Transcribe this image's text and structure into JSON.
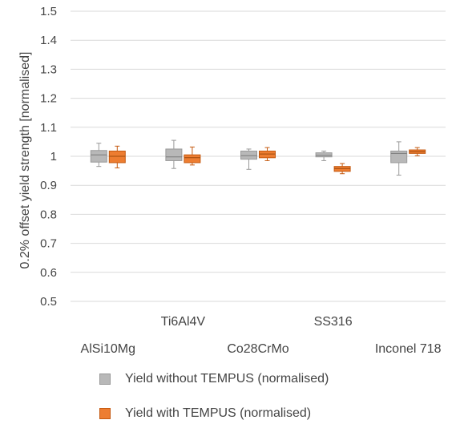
{
  "chart_data": {
    "type": "box",
    "ylabel": "0.2% offset yield strength [normalised]",
    "ylim": [
      0.5,
      1.5
    ],
    "yticks": [
      "0.5",
      "0.6",
      "0.7",
      "0.8",
      "0.9",
      "1",
      "1.1",
      "1.2",
      "1.3",
      "1.4",
      "1.5"
    ],
    "grid": true,
    "legend_position": "bottom",
    "categories": [
      "AlSi10Mg",
      "Ti6Al4V",
      "Co28CrMo",
      "SS316",
      "Inconel 718"
    ],
    "series": [
      {
        "name": "Yield without TEMPUS (normalised)",
        "color": "#b8b8b8",
        "stroke": "#999999",
        "boxes": [
          {
            "min": 0.965,
            "q1": 0.98,
            "median": 1.005,
            "q3": 1.02,
            "max": 1.045
          },
          {
            "min": 0.958,
            "q1": 0.985,
            "median": 0.998,
            "q3": 1.025,
            "max": 1.055
          },
          {
            "min": 0.955,
            "q1": 0.99,
            "median": 1.002,
            "q3": 1.018,
            "max": 1.025
          },
          {
            "min": 0.985,
            "q1": 0.998,
            "median": 1.003,
            "q3": 1.012,
            "max": 1.018
          },
          {
            "min": 0.935,
            "q1": 0.978,
            "median": 1.01,
            "q3": 1.018,
            "max": 1.05
          }
        ]
      },
      {
        "name": "Yield with TEMPUS (normalised)",
        "color": "#ed7d31",
        "stroke": "#c55a11",
        "boxes": [
          {
            "min": 0.96,
            "q1": 0.978,
            "median": 1.0,
            "q3": 1.018,
            "max": 1.035
          },
          {
            "min": 0.97,
            "q1": 0.978,
            "median": 0.995,
            "q3": 1.005,
            "max": 1.032
          },
          {
            "min": 0.985,
            "q1": 0.995,
            "median": 1.008,
            "q3": 1.018,
            "max": 1.03
          },
          {
            "min": 0.94,
            "q1": 0.948,
            "median": 0.958,
            "q3": 0.965,
            "max": 0.975
          },
          {
            "min": 1.002,
            "q1": 1.01,
            "median": 1.016,
            "q3": 1.022,
            "max": 1.03
          }
        ]
      }
    ]
  }
}
